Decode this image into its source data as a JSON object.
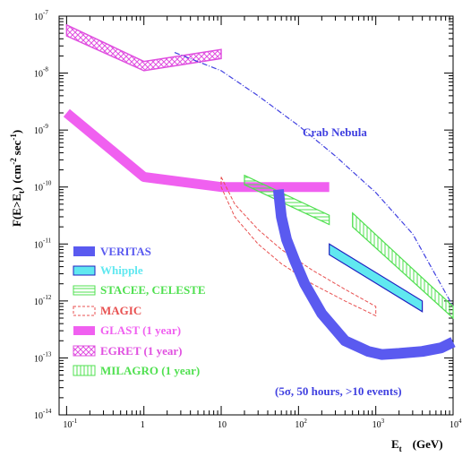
{
  "chart_data": {
    "type": "line",
    "title": "",
    "xlabel_main": "E",
    "xlabel_sub": "t",
    "xlabel_unit": "(GeV)",
    "ylabel_main": "F(E>E",
    "ylabel_sub": "t",
    "ylabel_close": ")",
    "ylabel_unit_open": "(cm",
    "ylabel_unit_exp1": "-2",
    "ylabel_unit_mid": "sec",
    "ylabel_unit_exp2": "-1",
    "ylabel_unit_close": ")",
    "x_scale": "log",
    "y_scale": "log",
    "xlim": [
      0.08,
      10000
    ],
    "ylim": [
      1e-14,
      1e-07
    ],
    "x_ticks": [
      {
        "base": "10",
        "exp": "-1"
      },
      {
        "base": "1",
        "exp": ""
      },
      {
        "base": "10",
        "exp": ""
      },
      {
        "base": "10",
        "exp": "2"
      },
      {
        "base": "10",
        "exp": "3"
      },
      {
        "base": "10",
        "exp": "4"
      }
    ],
    "y_ticks": [
      {
        "base": "10",
        "exp": "-14"
      },
      {
        "base": "10",
        "exp": "-13"
      },
      {
        "base": "10",
        "exp": "-12"
      },
      {
        "base": "10",
        "exp": "-11"
      },
      {
        "base": "10",
        "exp": "-10"
      },
      {
        "base": "10",
        "exp": "-9"
      },
      {
        "base": "10",
        "exp": "-8"
      },
      {
        "base": "10",
        "exp": "-7"
      }
    ],
    "annotations": {
      "crab": "Crab Nebula",
      "conditions": "(5σ, 50 hours, >10 events)"
    },
    "colors": {
      "veritas": "#5a5af0",
      "whipple": "#60e8f0",
      "stacee": "#50e050",
      "magic": "#e85050",
      "glast": "#f060f0",
      "egret": "#e050e0",
      "milagro": "#50e050",
      "crab": "#4040e0"
    },
    "series": [
      {
        "name": "VERITAS",
        "style": "thick-band",
        "x": [
          55,
          60,
          70,
          90,
          120,
          200,
          400,
          800,
          1200,
          2000,
          4000,
          7000,
          10000
        ],
        "y": [
          9e-11,
          3e-11,
          1.2e-11,
          5e-12,
          2e-12,
          6e-13,
          2e-13,
          1.3e-13,
          1.15e-13,
          1.2e-13,
          1.3e-13,
          1.5e-13,
          1.9e-13
        ]
      },
      {
        "name": "Whipple",
        "style": "hollow-band",
        "x": [
          250,
          4000
        ],
        "y_low": [
          6.5e-12,
          6.5e-13
        ],
        "y_high": [
          1e-11,
          1e-12
        ]
      },
      {
        "name": "STACEE, CELESTE",
        "style": "hatched-horizontal",
        "x": [
          20,
          250
        ],
        "y_low": [
          1.1e-10,
          2.2e-11
        ],
        "y_high": [
          1.6e-10,
          3.2e-11
        ]
      },
      {
        "name": "MAGIC",
        "style": "dashed-outline",
        "x_upper": [
          10,
          15,
          30,
          60,
          150,
          400,
          1000
        ],
        "y_upper": [
          1.5e-10,
          5e-11,
          1.8e-11,
          8e-12,
          3.5e-12,
          1.6e-12,
          8e-13
        ],
        "x_lower": [
          10,
          15,
          30,
          60,
          150,
          400,
          1000
        ],
        "y_lower": [
          1e-10,
          3e-11,
          1e-11,
          4.5e-12,
          2e-12,
          1e-12,
          5.5e-13
        ]
      },
      {
        "name": "GLAST (1 year)",
        "style": "thick-band",
        "x": [
          0.1,
          1,
          10,
          250
        ],
        "y": [
          2e-09,
          1.5e-10,
          1e-10,
          1e-10
        ]
      },
      {
        "name": "EGRET (1 year)",
        "style": "cross-hatched",
        "x": [
          0.1,
          1,
          10
        ],
        "y_low": [
          4.5e-08,
          1.1e-08,
          1.8e-08
        ],
        "y_high": [
          7e-08,
          1.6e-08,
          2.6e-08
        ]
      },
      {
        "name": "MILAGRO (1 year)",
        "style": "hatched-vertical",
        "x": [
          500,
          10000
        ],
        "y_low": [
          2e-11,
          5e-13
        ],
        "y_high": [
          3.5e-11,
          8e-13
        ]
      },
      {
        "name": "Crab Nebula",
        "style": "dash-dot",
        "x": [
          2.5,
          10,
          30,
          100,
          300,
          1000,
          3000,
          10000
        ],
        "y": [
          2.3e-08,
          1.1e-08,
          4e-09,
          1.2e-09,
          3.5e-10,
          8e-11,
          1.5e-11,
          8e-13
        ]
      }
    ]
  }
}
